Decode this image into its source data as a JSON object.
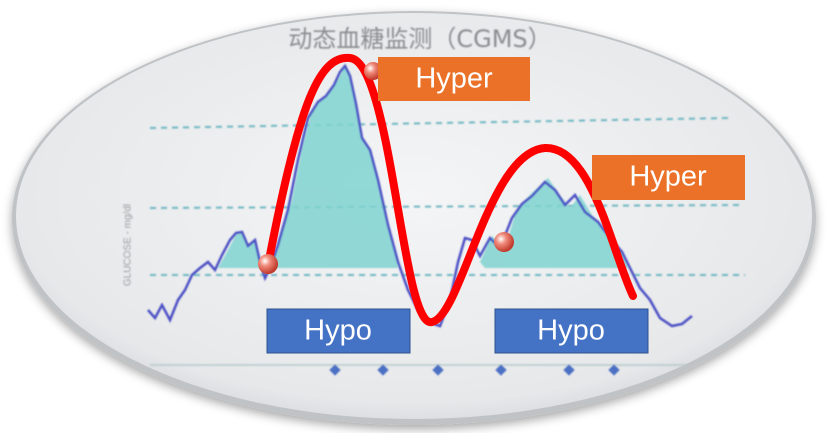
{
  "title": "动态血糖监测（CGMS）",
  "y_axis_label": "GLUCOSE - mg/dl",
  "annotations": [
    {
      "label": "Hyper"
    },
    {
      "label": "Hyper"
    },
    {
      "label": "Hypo"
    },
    {
      "label": "Hypo"
    }
  ]
}
